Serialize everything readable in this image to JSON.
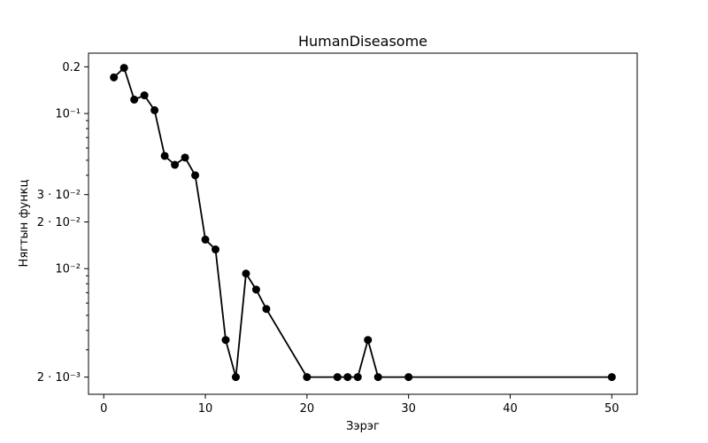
{
  "chart_data": {
    "type": "line",
    "title": "HumanDiseasome",
    "xlabel": "Зэрэг",
    "ylabel": "Нягтын функц",
    "xlim": [
      -1.5,
      52.5
    ],
    "ylim": [
      0.00155,
      0.245
    ],
    "yscale": "log",
    "grid": false,
    "series": [
      {
        "color": "#000000",
        "marker": "circle",
        "x": [
          1,
          2,
          3,
          4,
          5,
          6,
          7,
          8,
          9,
          10,
          11,
          12,
          13,
          14,
          15,
          16,
          20,
          23,
          24,
          25,
          26,
          27,
          30,
          50
        ],
        "y": [
          0.171,
          0.197,
          0.123,
          0.131,
          0.105,
          0.0533,
          0.0467,
          0.052,
          0.04,
          0.0154,
          0.0133,
          0.00347,
          0.002,
          0.0093,
          0.00733,
          0.0055,
          0.002,
          0.002,
          0.002,
          0.002,
          0.00347,
          0.002,
          0.002,
          0.002
        ]
      }
    ],
    "xticks": [
      {
        "value": 0,
        "label": "0"
      },
      {
        "value": 10,
        "label": "10"
      },
      {
        "value": 20,
        "label": "20"
      },
      {
        "value": 30,
        "label": "30"
      },
      {
        "value": 40,
        "label": "40"
      },
      {
        "value": 50,
        "label": "50"
      }
    ],
    "yticks": [
      {
        "value": 0.2,
        "label": "0.2"
      },
      {
        "value": 0.1,
        "label": "10⁻¹"
      },
      {
        "value": 0.03,
        "label": "3 · 10⁻²"
      },
      {
        "value": 0.02,
        "label": "2 · 10⁻²"
      },
      {
        "value": 0.01,
        "label": "10⁻²"
      },
      {
        "value": 0.002,
        "label": "2 · 10⁻³"
      }
    ],
    "yminor_ticks": [
      0.09,
      0.08,
      0.07,
      0.06,
      0.05,
      0.04,
      0.009,
      0.008,
      0.007,
      0.006,
      0.005,
      0.004,
      0.003
    ]
  }
}
